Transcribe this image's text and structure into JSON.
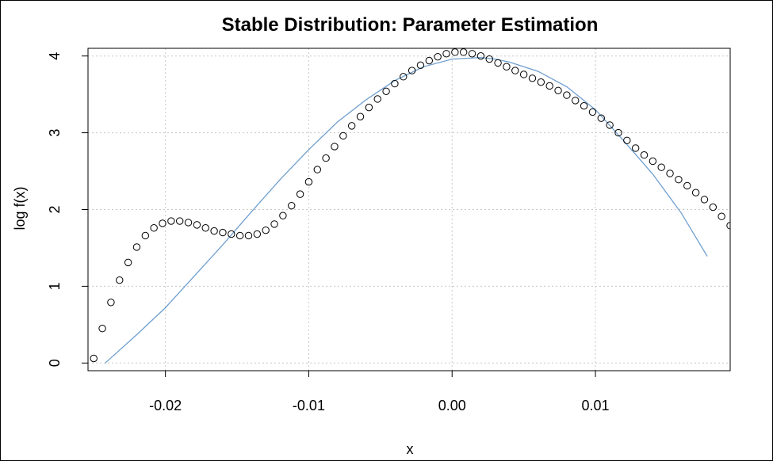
{
  "chart_data": {
    "type": "scatter",
    "title": "Stable Distribution: Parameter Estimation",
    "xlabel": "x",
    "ylabel": "log f(x)",
    "xlim": [
      -0.0254,
      0.0194
    ],
    "ylim": [
      -0.1,
      4.1
    ],
    "x_ticks": [
      -0.02,
      -0.01,
      0.0,
      0.01
    ],
    "x_tick_labels": [
      "-0.02",
      "-0.01",
      "0.00",
      "0.01"
    ],
    "y_ticks": [
      0,
      1,
      2,
      3,
      4
    ],
    "y_tick_labels": [
      "0",
      "1",
      "2",
      "3",
      "4"
    ],
    "grid": true,
    "colors": {
      "points": "#000000",
      "fit_line": "#6f9fcf",
      "grid": "#c8c8c8"
    },
    "series": [
      {
        "kind": "points",
        "x": [
          -0.025,
          -0.0244,
          -0.0238,
          -0.0232,
          -0.0226,
          -0.022,
          -0.0214,
          -0.0208,
          -0.0202,
          -0.0196,
          -0.019,
          -0.0184,
          -0.0178,
          -0.0172,
          -0.0166,
          -0.016,
          -0.0154,
          -0.0148,
          -0.0142,
          -0.0136,
          -0.013,
          -0.0124,
          -0.0118,
          -0.0112,
          -0.0106,
          -0.01,
          -0.0094,
          -0.0088,
          -0.0082,
          -0.0076,
          -0.007,
          -0.0064,
          -0.0058,
          -0.0052,
          -0.0046,
          -0.004,
          -0.0034,
          -0.0028,
          -0.0022,
          -0.0016,
          -0.001,
          -0.0004,
          0.0002,
          0.0008,
          0.0014,
          0.002,
          0.0026,
          0.0032,
          0.0038,
          0.0044,
          0.005,
          0.0056,
          0.0062,
          0.0068,
          0.0074,
          0.008,
          0.0086,
          0.0092,
          0.0098,
          0.0104,
          0.011,
          0.0116,
          0.0122,
          0.0128,
          0.0134,
          0.014,
          0.0146,
          0.0152,
          0.0158,
          0.0164,
          0.017,
          0.0176,
          0.0182,
          0.0188,
          0.0194
        ],
        "y": [
          0.06,
          0.45,
          0.79,
          1.08,
          1.31,
          1.51,
          1.66,
          1.76,
          1.82,
          1.85,
          1.85,
          1.83,
          1.8,
          1.76,
          1.72,
          1.7,
          1.68,
          1.66,
          1.66,
          1.68,
          1.73,
          1.81,
          1.92,
          2.05,
          2.2,
          2.36,
          2.52,
          2.67,
          2.82,
          2.96,
          3.09,
          3.21,
          3.33,
          3.44,
          3.54,
          3.64,
          3.73,
          3.81,
          3.88,
          3.94,
          3.99,
          4.03,
          4.05,
          4.05,
          4.03,
          4.0,
          3.96,
          3.91,
          3.86,
          3.81,
          3.76,
          3.71,
          3.66,
          3.61,
          3.55,
          3.49,
          3.42,
          3.35,
          3.27,
          3.19,
          3.1,
          3.0,
          2.9,
          2.8,
          2.71,
          2.63,
          2.55,
          2.47,
          2.39,
          2.31,
          2.22,
          2.13,
          2.03,
          1.91,
          1.79
        ]
      },
      {
        "kind": "line",
        "x": [
          -0.0242,
          -0.022,
          -0.02,
          -0.018,
          -0.016,
          -0.014,
          -0.012,
          -0.01,
          -0.008,
          -0.006,
          -0.004,
          -0.002,
          0.0,
          0.001,
          0.002,
          0.003,
          0.004,
          0.006,
          0.008,
          0.01,
          0.012,
          0.014,
          0.016,
          0.0178
        ],
        "y": [
          0.0,
          0.37,
          0.72,
          1.13,
          1.54,
          1.97,
          2.39,
          2.78,
          3.14,
          3.43,
          3.68,
          3.86,
          3.96,
          3.97,
          3.98,
          3.96,
          3.92,
          3.8,
          3.6,
          3.3,
          2.89,
          2.46,
          1.95,
          1.39
        ]
      }
    ]
  }
}
